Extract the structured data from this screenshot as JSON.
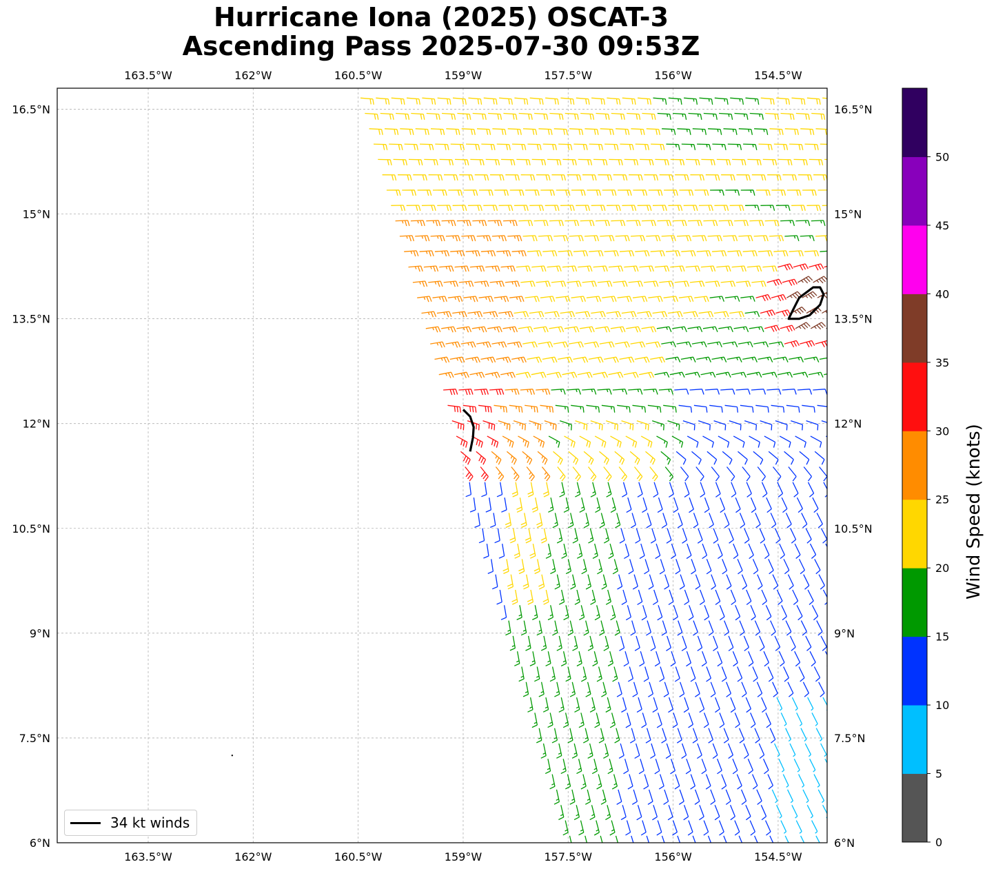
{
  "title": {
    "line1": "Hurricane Iona (2025) OSCAT-3",
    "line2": "Ascending Pass 2025-07-30 09:53Z"
  },
  "map": {
    "lon_range": [
      -164.8,
      -153.8
    ],
    "lat_range": [
      6.0,
      16.8
    ],
    "lon_ticks": [
      {
        "value": -163.5,
        "label": "163.5°W"
      },
      {
        "value": -162.0,
        "label": "162°W"
      },
      {
        "value": -160.5,
        "label": "160.5°W"
      },
      {
        "value": -159.0,
        "label": "159°W"
      },
      {
        "value": -157.5,
        "label": "157.5°W"
      },
      {
        "value": -156.0,
        "label": "156°W"
      },
      {
        "value": -154.5,
        "label": "154.5°W"
      }
    ],
    "lat_ticks": [
      {
        "value": 16.5,
        "label": "16.5°N"
      },
      {
        "value": 15.0,
        "label": "15°N"
      },
      {
        "value": 13.5,
        "label": "13.5°N"
      },
      {
        "value": 12.0,
        "label": "12°N"
      },
      {
        "value": 10.5,
        "label": "10.5°N"
      },
      {
        "value": 9.0,
        "label": "9°N"
      },
      {
        "value": 7.5,
        "label": "7.5°N"
      },
      {
        "value": 6.0,
        "label": "6°N"
      }
    ],
    "gridlines": true,
    "swath_edge_west": [
      [
        16.6,
        -160.5
      ],
      [
        6.0,
        -157.5
      ]
    ],
    "wind_field_summary": {
      "north_of_13N": "easterly trades mostly 20-25 kt, 25-30 kt along western swath edge, 15-20 kt near 13N-16N east side",
      "circulation_center_approx": [
        11.5,
        -157.0
      ],
      "south_of_11N": "southerly/southeasterly flow, 10-20 kt, 5-10 kt patches near 154W"
    },
    "contour_34kt": [
      [
        [
          12.2,
          -159.0
        ],
        [
          12.1,
          -158.9
        ],
        [
          11.95,
          -158.85
        ],
        [
          11.8,
          -158.86
        ],
        [
          11.6,
          -158.9
        ]
      ],
      [
        [
          13.6,
          -154.3
        ],
        [
          13.8,
          -154.2
        ],
        [
          13.95,
          -154.0
        ],
        [
          13.95,
          -153.9
        ],
        [
          13.85,
          -153.85
        ],
        [
          13.7,
          -153.9
        ],
        [
          13.55,
          -154.05
        ],
        [
          13.5,
          -154.2
        ],
        [
          13.5,
          -154.35
        ],
        [
          13.6,
          -154.3
        ]
      ]
    ],
    "stray_point": [
      7.25,
      -162.3
    ]
  },
  "colorbar": {
    "label": "Wind Speed (knots)",
    "range": [
      0,
      55
    ],
    "bins": [
      {
        "from": 0,
        "to": 5,
        "color": "#555555"
      },
      {
        "from": 5,
        "to": 10,
        "color": "#00bfff"
      },
      {
        "from": 10,
        "to": 15,
        "color": "#0033ff"
      },
      {
        "from": 15,
        "to": 20,
        "color": "#009900"
      },
      {
        "from": 20,
        "to": 25,
        "color": "#ffd700"
      },
      {
        "from": 25,
        "to": 30,
        "color": "#ff8c00"
      },
      {
        "from": 30,
        "to": 35,
        "color": "#ff0f0f"
      },
      {
        "from": 35,
        "to": 40,
        "color": "#7f3c28"
      },
      {
        "from": 40,
        "to": 45,
        "color": "#ff00ee"
      },
      {
        "from": 45,
        "to": 50,
        "color": "#8800bb"
      },
      {
        "from": 50,
        "to": 55,
        "color": "#300060"
      }
    ],
    "ticks": [
      "0",
      "5",
      "10",
      "15",
      "20",
      "25",
      "30",
      "35",
      "40",
      "45",
      "50"
    ]
  },
  "legend": {
    "label": "34 kt winds",
    "color": "#000000"
  }
}
